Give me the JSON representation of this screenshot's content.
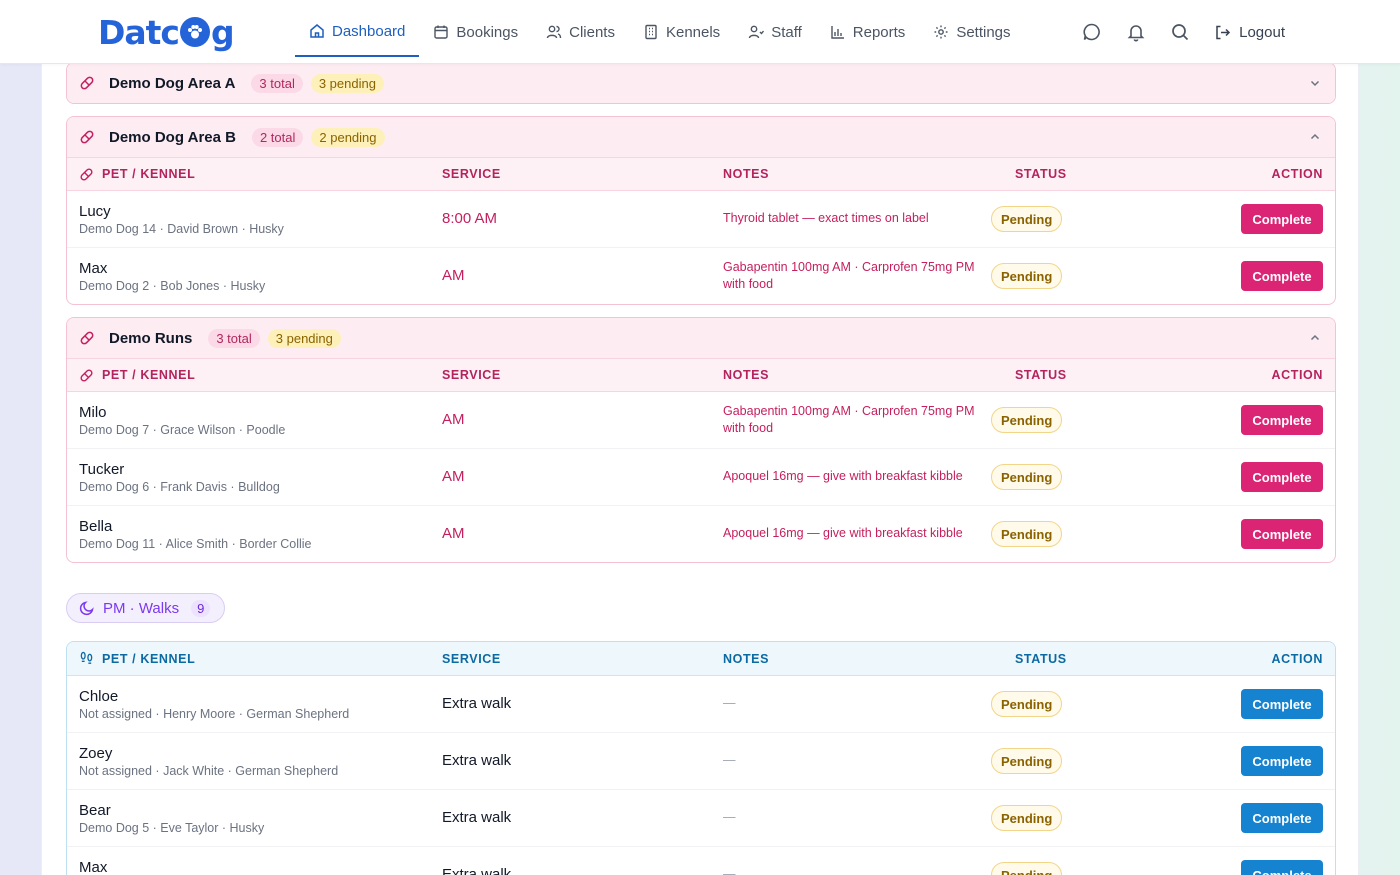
{
  "brand": {
    "name_left": "Datc",
    "name_right": "g"
  },
  "nav": {
    "items": [
      {
        "label": "Dashboard",
        "icon": "home-icon",
        "active": true
      },
      {
        "label": "Bookings",
        "icon": "calendar-icon"
      },
      {
        "label": "Clients",
        "icon": "users-icon"
      },
      {
        "label": "Kennels",
        "icon": "building-icon"
      },
      {
        "label": "Staff",
        "icon": "staff-icon"
      },
      {
        "label": "Reports",
        "icon": "bar-chart-icon"
      },
      {
        "label": "Settings",
        "icon": "gear-icon"
      }
    ],
    "logout_label": "Logout"
  },
  "groups": [
    {
      "title": "Demo Dog Area A",
      "total": "3 total",
      "pending": "3 pending",
      "expanded": false
    },
    {
      "title": "Demo Dog Area B",
      "total": "2 total",
      "pending": "2 pending",
      "expanded": true,
      "headers": {
        "pet": "PET / KENNEL",
        "service": "SERVICE",
        "notes": "NOTES",
        "status": "STATUS",
        "action": "ACTION"
      },
      "rows": [
        {
          "name": "Lucy",
          "meta": "Demo Dog 14 · David Brown · Husky",
          "service": "8:00 AM",
          "notes": "Thyroid tablet — exact times on label",
          "status": "Pending",
          "action": "Complete"
        },
        {
          "name": "Max",
          "meta": "Demo Dog 2 · Bob Jones · Husky",
          "service": "AM",
          "notes": "Gabapentin 100mg AM · Carprofen 75mg PM with food",
          "status": "Pending",
          "action": "Complete"
        }
      ]
    },
    {
      "title": "Demo Runs",
      "total": "3 total",
      "pending": "3 pending",
      "expanded": true,
      "headers": {
        "pet": "PET / KENNEL",
        "service": "SERVICE",
        "notes": "NOTES",
        "status": "STATUS",
        "action": "ACTION"
      },
      "rows": [
        {
          "name": "Milo",
          "meta": "Demo Dog 7 · Grace Wilson · Poodle",
          "service": "AM",
          "notes": "Gabapentin 100mg AM · Carprofen 75mg PM with food",
          "status": "Pending",
          "action": "Complete"
        },
        {
          "name": "Tucker",
          "meta": "Demo Dog 6 · Frank Davis · Bulldog",
          "service": "AM",
          "notes": "Apoquel 16mg — give with breakfast kibble",
          "status": "Pending",
          "action": "Complete"
        },
        {
          "name": "Bella",
          "meta": "Demo Dog 11 · Alice Smith · Border Collie",
          "service": "AM",
          "notes": "Apoquel 16mg — give with breakfast kibble",
          "status": "Pending",
          "action": "Complete"
        }
      ]
    }
  ],
  "pm_section": {
    "label": "PM · Walks",
    "count": "9"
  },
  "walks": {
    "headers": {
      "pet": "PET / KENNEL",
      "service": "SERVICE",
      "notes": "NOTES",
      "status": "STATUS",
      "action": "ACTION"
    },
    "rows": [
      {
        "name": "Chloe",
        "meta": "Not assigned · Henry Moore · German Shepherd",
        "service": "Extra walk",
        "notes": "—",
        "status": "Pending",
        "action": "Complete"
      },
      {
        "name": "Zoey",
        "meta": "Not assigned · Jack White · German Shepherd",
        "service": "Extra walk",
        "notes": "—",
        "status": "Pending",
        "action": "Complete"
      },
      {
        "name": "Bear",
        "meta": "Demo Dog 5 · Eve Taylor · Husky",
        "service": "Extra walk",
        "notes": "—",
        "status": "Pending",
        "action": "Complete"
      },
      {
        "name": "Max",
        "meta": "",
        "service": "Extra walk",
        "notes": "—",
        "status": "Pending",
        "action": "Complete"
      }
    ]
  },
  "colors": {
    "brand": "#2563d9",
    "pink_accent": "#db2474",
    "blue_accent": "#1583d0",
    "pending": "#8a6300"
  }
}
